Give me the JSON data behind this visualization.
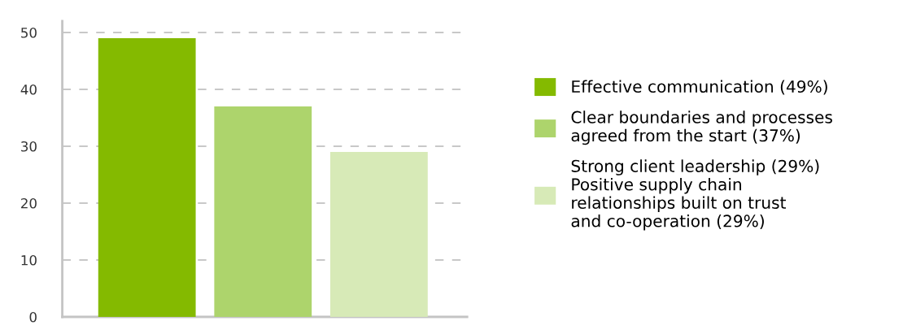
{
  "chart_data": {
    "type": "bar",
    "categories": [
      null,
      null,
      null
    ],
    "series": [
      {
        "name": "Effective communication (49%)",
        "color": "#84ba00",
        "values": [
          49,
          null,
          null
        ]
      },
      {
        "name": "Clear boundaries and processes\nagreed from the start (37%)",
        "color": "#add46c",
        "values": [
          null,
          37,
          null
        ]
      },
      {
        "name": "Strong client leadership (29%)\nPositive supply chain\nrelationships built on trust\nand co-operation (29%)",
        "color": "#d7eab7",
        "values": [
          null,
          null,
          29
        ]
      }
    ],
    "ylim": [
      0,
      52
    ],
    "yticks": [
      0,
      10,
      20,
      30,
      40,
      50
    ],
    "grid": "y",
    "legend": "right"
  }
}
